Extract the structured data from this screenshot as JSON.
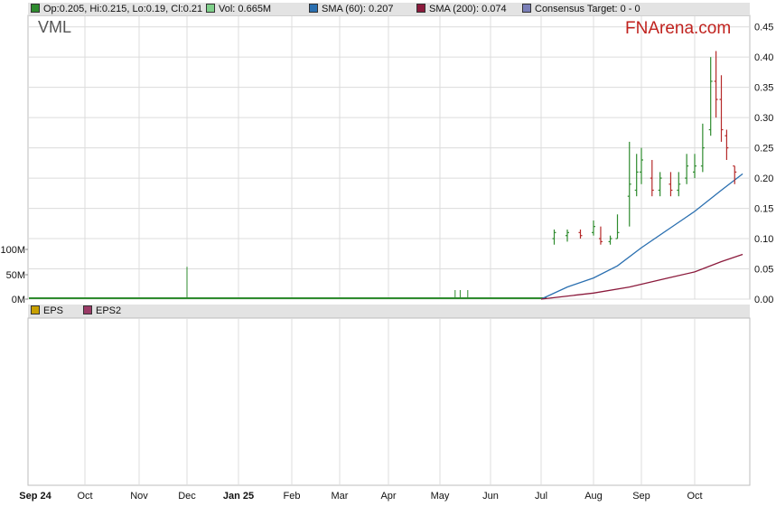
{
  "symbol": "VML",
  "brand": "FNArena.com",
  "legend_top": [
    {
      "label": "Op:0.205, Hi:0.215, Lo:0.19, Cl:0.21",
      "color": "#2e8b2e"
    },
    {
      "label": "Vol: 0.665M",
      "color": "#7fd08a"
    },
    {
      "label": "SMA (60): 0.207",
      "color": "#2a6fb0"
    },
    {
      "label": "SMA (200): 0.074",
      "color": "#8b1a3c"
    },
    {
      "label": "Consensus Target: 0 - 0",
      "color": "#7a7fb8"
    }
  ],
  "legend_bottom": [
    {
      "label": "EPS",
      "color": "#c8a000"
    },
    {
      "label": "EPS2",
      "color": "#9a3a66"
    }
  ],
  "chart_data": {
    "type": "line",
    "price_axis": {
      "ticks": [
        "0.45",
        "0.40",
        "0.35",
        "0.30",
        "0.25",
        "0.20",
        "0.15",
        "0.10",
        "0.05",
        "0.00"
      ],
      "ylim": [
        0,
        0.46
      ]
    },
    "volume_axis": {
      "ticks": [
        "100M",
        "50M",
        "0M"
      ]
    },
    "x_ticks": [
      "Sep 24",
      "Oct",
      "Nov",
      "Dec",
      "Jan 25",
      "Feb",
      "Mar",
      "Apr",
      "May",
      "Jun",
      "Jul",
      "Aug",
      "Sep",
      "Oct"
    ],
    "month_index": [
      0,
      1,
      2,
      3,
      4,
      5,
      6,
      7,
      8,
      9,
      10,
      11,
      12,
      13
    ],
    "price_ohlc_points": [
      {
        "x": 10.25,
        "o": 0.1,
        "h": 0.115,
        "l": 0.09,
        "c": 0.11
      },
      {
        "x": 10.5,
        "o": 0.105,
        "h": 0.115,
        "l": 0.095,
        "c": 0.11
      },
      {
        "x": 10.75,
        "o": 0.11,
        "h": 0.115,
        "l": 0.1,
        "c": 0.105
      },
      {
        "x": 11.0,
        "o": 0.11,
        "h": 0.13,
        "l": 0.105,
        "c": 0.12
      },
      {
        "x": 11.15,
        "o": 0.1,
        "h": 0.12,
        "l": 0.09,
        "c": 0.095
      },
      {
        "x": 11.35,
        "o": 0.095,
        "h": 0.105,
        "l": 0.09,
        "c": 0.1
      },
      {
        "x": 11.5,
        "o": 0.1,
        "h": 0.14,
        "l": 0.1,
        "c": 0.11
      },
      {
        "x": 11.75,
        "o": 0.17,
        "h": 0.26,
        "l": 0.12,
        "c": 0.19
      },
      {
        "x": 11.9,
        "o": 0.18,
        "h": 0.24,
        "l": 0.17,
        "c": 0.21
      },
      {
        "x": 12.0,
        "o": 0.21,
        "h": 0.25,
        "l": 0.19,
        "c": 0.23
      },
      {
        "x": 12.2,
        "o": 0.2,
        "h": 0.23,
        "l": 0.17,
        "c": 0.18
      },
      {
        "x": 12.35,
        "o": 0.18,
        "h": 0.21,
        "l": 0.17,
        "c": 0.2
      },
      {
        "x": 12.55,
        "o": 0.19,
        "h": 0.21,
        "l": 0.17,
        "c": 0.18
      },
      {
        "x": 12.7,
        "o": 0.18,
        "h": 0.21,
        "l": 0.17,
        "c": 0.19
      },
      {
        "x": 12.85,
        "o": 0.2,
        "h": 0.24,
        "l": 0.19,
        "c": 0.22
      },
      {
        "x": 13.0,
        "o": 0.21,
        "h": 0.24,
        "l": 0.2,
        "c": 0.22
      },
      {
        "x": 13.15,
        "o": 0.22,
        "h": 0.29,
        "l": 0.21,
        "c": 0.25
      },
      {
        "x": 13.3,
        "o": 0.28,
        "h": 0.4,
        "l": 0.27,
        "c": 0.36
      },
      {
        "x": 13.4,
        "o": 0.36,
        "h": 0.41,
        "l": 0.3,
        "c": 0.33
      },
      {
        "x": 13.5,
        "o": 0.33,
        "h": 0.37,
        "l": 0.26,
        "c": 0.28
      },
      {
        "x": 13.6,
        "o": 0.27,
        "h": 0.28,
        "l": 0.23,
        "c": 0.25
      },
      {
        "x": 13.75,
        "o": 0.22,
        "h": 0.22,
        "l": 0.19,
        "c": 0.21
      }
    ],
    "sma60": [
      [
        10.0,
        0.0
      ],
      [
        10.5,
        0.02
      ],
      [
        11.0,
        0.035
      ],
      [
        11.5,
        0.055
      ],
      [
        12.0,
        0.085
      ],
      [
        12.5,
        0.115
      ],
      [
        13.0,
        0.145
      ],
      [
        13.5,
        0.18
      ],
      [
        13.9,
        0.207
      ]
    ],
    "sma200": [
      [
        10.0,
        0.0
      ],
      [
        11.0,
        0.01
      ],
      [
        11.75,
        0.02
      ],
      [
        12.5,
        0.035
      ],
      [
        13.0,
        0.045
      ],
      [
        13.5,
        0.062
      ],
      [
        13.9,
        0.074
      ]
    ],
    "volume_spike": {
      "x": 3.0,
      "value": 65
    }
  }
}
